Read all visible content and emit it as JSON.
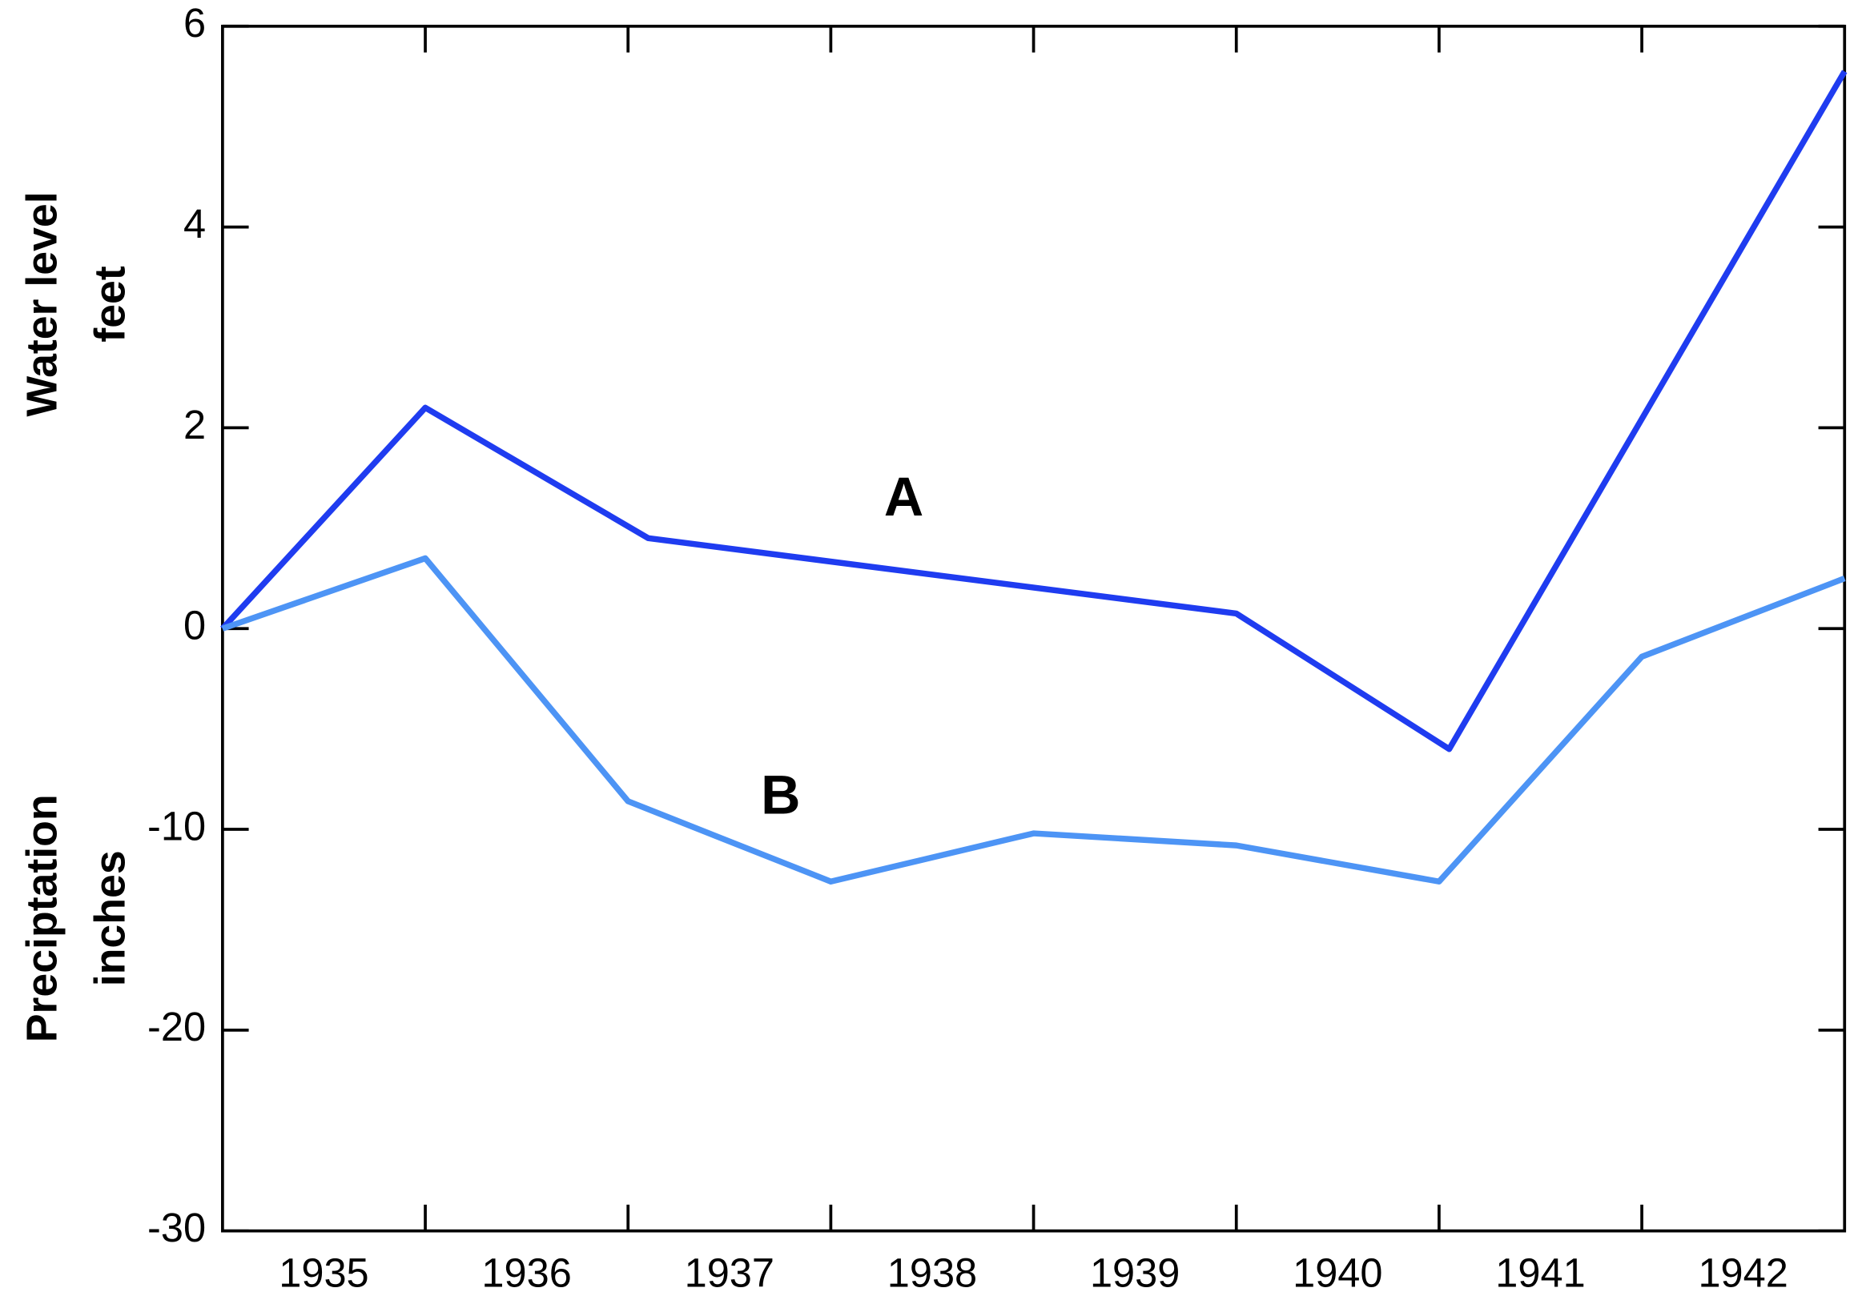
{
  "chart_data": {
    "type": "line",
    "ylabel": [
      "Water level",
      "feet"
    ],
    "y2label": [
      "Preciptation",
      "inches"
    ],
    "categories": [
      "1935",
      "1936",
      "1937",
      "1938",
      "1939",
      "1940",
      "1941",
      "1942"
    ],
    "xlim": [
      1935,
      1943
    ],
    "xticks": [
      1936,
      1937,
      1938,
      1939,
      1940,
      1941,
      1942
    ],
    "ylim": [
      -6,
      6
    ],
    "yticks": [
      0,
      2,
      4,
      6
    ],
    "y2lim": [
      -30,
      30
    ],
    "y2ticks": [
      -30,
      -20,
      -10
    ],
    "series": [
      {
        "name": "A",
        "color": "#1f3cf0",
        "x": [
          1935,
          1936,
          1937.1,
          1940,
          1941.05,
          1943
        ],
        "values": [
          0,
          2.2,
          0.9,
          0.15,
          -1.2,
          5.55
        ]
      },
      {
        "name": "B",
        "color": "#4d94f5",
        "axis": "y2",
        "x": [
          1935,
          1936,
          1937,
          1938,
          1939,
          1940,
          1941,
          1942,
          1943
        ],
        "values": [
          0,
          3.5,
          -8.6,
          -12.6,
          -10.2,
          -10.8,
          -12.6,
          -1.4,
          2.5
        ]
      }
    ]
  }
}
